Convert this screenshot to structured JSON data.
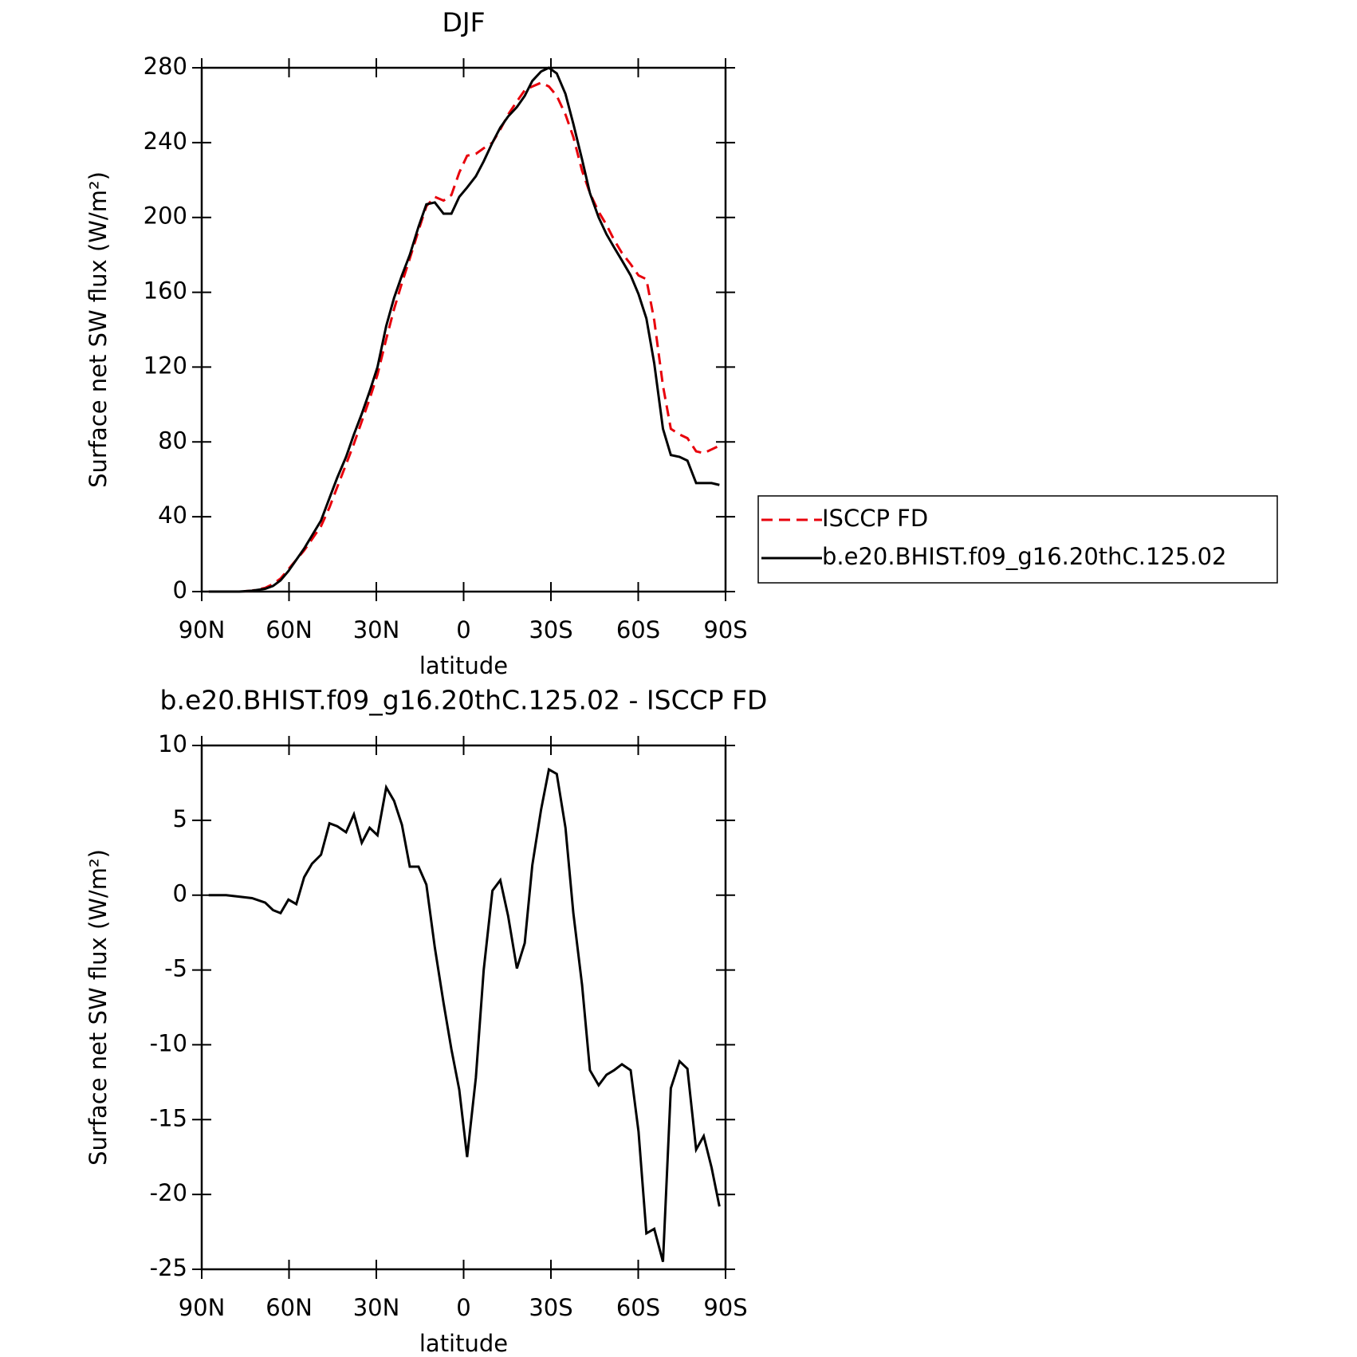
{
  "chart_data": [
    {
      "type": "line",
      "title": "DJF",
      "xlabel": "latitude",
      "ylabel": "Surface net SW flux (W/m²)",
      "x": [
        87.6,
        81.6,
        77.1,
        72.7,
        68.2,
        65.5,
        62.9,
        60.2,
        57.5,
        54.8,
        52.1,
        49.0,
        46.1,
        43.4,
        40.4,
        37.7,
        35.0,
        32.3,
        29.6,
        26.6,
        23.9,
        21.2,
        18.5,
        15.5,
        12.8,
        9.9,
        6.9,
        4.2,
        1.5,
        -1.2,
        -4.2,
        -6.9,
        -9.9,
        -12.6,
        -15.3,
        -18.3,
        -21.0,
        -23.6,
        -26.6,
        -29.3,
        -32.0,
        -35.0,
        -37.7,
        -40.7,
        -43.4,
        -46.4,
        -49.1,
        -51.7,
        -54.4,
        -57.4,
        -60.1,
        -62.8,
        -65.5,
        -68.5,
        -71.2,
        -74.2,
        -76.9,
        -79.9,
        -82.5,
        -85.2,
        -87.9
      ],
      "series": [
        {
          "name": "ISCCP FD",
          "color": "#e8000b",
          "linestyle": "dashed",
          "values": [
            0,
            0,
            0,
            0.5,
            2,
            4,
            7,
            12,
            17,
            22,
            28,
            35,
            45,
            56,
            68,
            79,
            91,
            103,
            116,
            135,
            151,
            165,
            178,
            193,
            206,
            211,
            209,
            212,
            224,
            233,
            234,
            237,
            240,
            247,
            255,
            262,
            268,
            270,
            272,
            270,
            265,
            255,
            243,
            225,
            213,
            203,
            196,
            188,
            181,
            175,
            169,
            167,
            145,
            110,
            87,
            84,
            82,
            75,
            74,
            76,
            78
          ]
        },
        {
          "name": "b.e20.BHIST.f09_g16.20thC.125.02",
          "color": "#000000",
          "linestyle": "solid",
          "values": [
            0,
            0,
            0,
            0.5,
            1.5,
            3,
            6,
            11,
            17,
            23,
            30,
            38,
            50,
            61,
            72,
            84,
            95,
            107,
            120,
            142,
            157,
            169,
            180,
            195,
            207,
            208,
            202,
            202,
            211,
            216,
            222,
            230,
            240,
            248,
            254,
            259,
            265,
            273,
            278,
            280,
            277,
            266,
            250,
            231,
            213,
            200,
            191,
            184,
            177,
            169,
            159,
            146,
            122,
            87,
            73,
            72,
            70,
            58,
            58,
            58,
            57
          ]
        }
      ],
      "xlim": [
        90,
        -90
      ],
      "xticks": [
        {
          "value": 90,
          "label": "90N"
        },
        {
          "value": 60,
          "label": "60N"
        },
        {
          "value": 30,
          "label": "30N"
        },
        0,
        {
          "value": -30,
          "label": "30S"
        },
        {
          "value": -60,
          "label": "60S"
        },
        {
          "value": -90,
          "label": "90S"
        }
      ],
      "ylim": [
        0,
        280
      ],
      "yticks": [
        0,
        40,
        80,
        120,
        160,
        200,
        240,
        280
      ],
      "legend": "outside-right"
    },
    {
      "type": "line",
      "title": "b.e20.BHIST.f09_g16.20thC.125.02 - ISCCP FD",
      "xlabel": "latitude",
      "ylabel": "Surface net SW flux (W/m²)",
      "x": [
        87.6,
        81.6,
        77.1,
        72.7,
        68.2,
        65.5,
        62.9,
        60.2,
        57.5,
        54.8,
        52.1,
        49.0,
        46.1,
        43.4,
        40.4,
        37.7,
        35.0,
        32.3,
        29.6,
        26.6,
        23.9,
        21.2,
        18.5,
        15.5,
        12.8,
        9.9,
        6.9,
        4.2,
        1.5,
        -1.2,
        -4.2,
        -6.9,
        -9.9,
        -12.6,
        -15.3,
        -18.3,
        -21.0,
        -23.6,
        -26.6,
        -29.3,
        -32.0,
        -35.0,
        -37.7,
        -40.7,
        -43.4,
        -46.4,
        -49.1,
        -51.7,
        -54.4,
        -57.4,
        -60.1,
        -62.8,
        -65.5,
        -68.5,
        -71.2,
        -74.2,
        -76.9,
        -79.9,
        -82.5,
        -85.2,
        -87.9
      ],
      "values": [
        0,
        0,
        -0.1,
        -0.2,
        -0.5,
        -1.0,
        -1.2,
        -0.3,
        -0.6,
        1.2,
        2.1,
        2.7,
        4.8,
        4.6,
        4.2,
        5.4,
        3.5,
        4.5,
        4.0,
        7.2,
        6.3,
        4.7,
        1.9,
        1.9,
        0.7,
        -3.5,
        -7.2,
        -10.3,
        -13,
        -17.5,
        -12.2,
        -5,
        0.3,
        1,
        -1.4,
        -4.9,
        -3.2,
        2,
        5.7,
        8.4,
        8.1,
        4.5,
        -1.2,
        -6,
        -11.7,
        -12.7,
        -12,
        -11.7,
        -11.3,
        -11.7,
        -15.8,
        -22.6,
        -22.3,
        -24.5,
        -12.9,
        -11.1,
        -11.6,
        -17,
        -16.1,
        -18.2,
        -20.8
      ],
      "color": "#000000",
      "xlim": [
        90,
        -90
      ],
      "xticks": [
        {
          "value": 90,
          "label": "90N"
        },
        {
          "value": 60,
          "label": "60N"
        },
        {
          "value": 30,
          "label": "30N"
        },
        0,
        {
          "value": -30,
          "label": "30S"
        },
        {
          "value": -60,
          "label": "60S"
        },
        {
          "value": -90,
          "label": "90S"
        }
      ],
      "ylim": [
        -25,
        10
      ],
      "yticks": [
        -25,
        -20,
        -15,
        -10,
        -5,
        0,
        5,
        10
      ]
    }
  ]
}
